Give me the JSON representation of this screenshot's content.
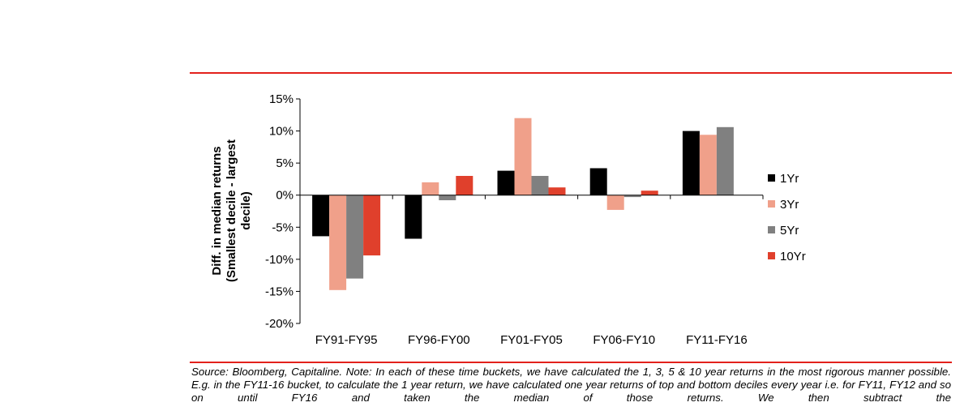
{
  "chart_data": {
    "type": "bar",
    "categories": [
      "FY91-FY95",
      "FY96-FY00",
      "FY01-FY05",
      "FY06-FY10",
      "FY11-FY16"
    ],
    "series": [
      {
        "name": "1Yr",
        "color": "#000000",
        "values": [
          -6.4,
          -6.8,
          3.8,
          4.2,
          10.0
        ]
      },
      {
        "name": "3Yr",
        "color": "#f0a08a",
        "values": [
          -14.8,
          2.0,
          12.0,
          -2.3,
          9.4
        ]
      },
      {
        "name": "5Yr",
        "color": "#808080",
        "values": [
          -13.0,
          -0.8,
          3.0,
          -0.3,
          10.6
        ]
      },
      {
        "name": "10Yr",
        "color": "#e0402c",
        "values": [
          -9.4,
          3.0,
          1.2,
          0.7,
          0.0
        ]
      }
    ],
    "title": "",
    "xlabel": "",
    "ylabel_lines": [
      "Diff. in median returns",
      "(Smallest decile - largest",
      "decile)"
    ],
    "ylim": [
      -20,
      15
    ],
    "yticks": [
      -20,
      -15,
      -10,
      -5,
      0,
      5,
      10,
      15
    ],
    "ytick_format": "percent",
    "grid": false,
    "legend_position": "right"
  },
  "note": {
    "text": "Source: Bloomberg, Capitaline. Note: In each of these time buckets, we have calculated the 1, 3, 5 & 10 year returns in the most rigorous manner possible. E.g. in the FY11-16 bucket, to calculate the 1 year return, we have calculated one year returns of top and bottom deciles every year i.e. for FY11, FY12 and so on until FY16 and taken the median of those returns. We then subtract the"
  }
}
